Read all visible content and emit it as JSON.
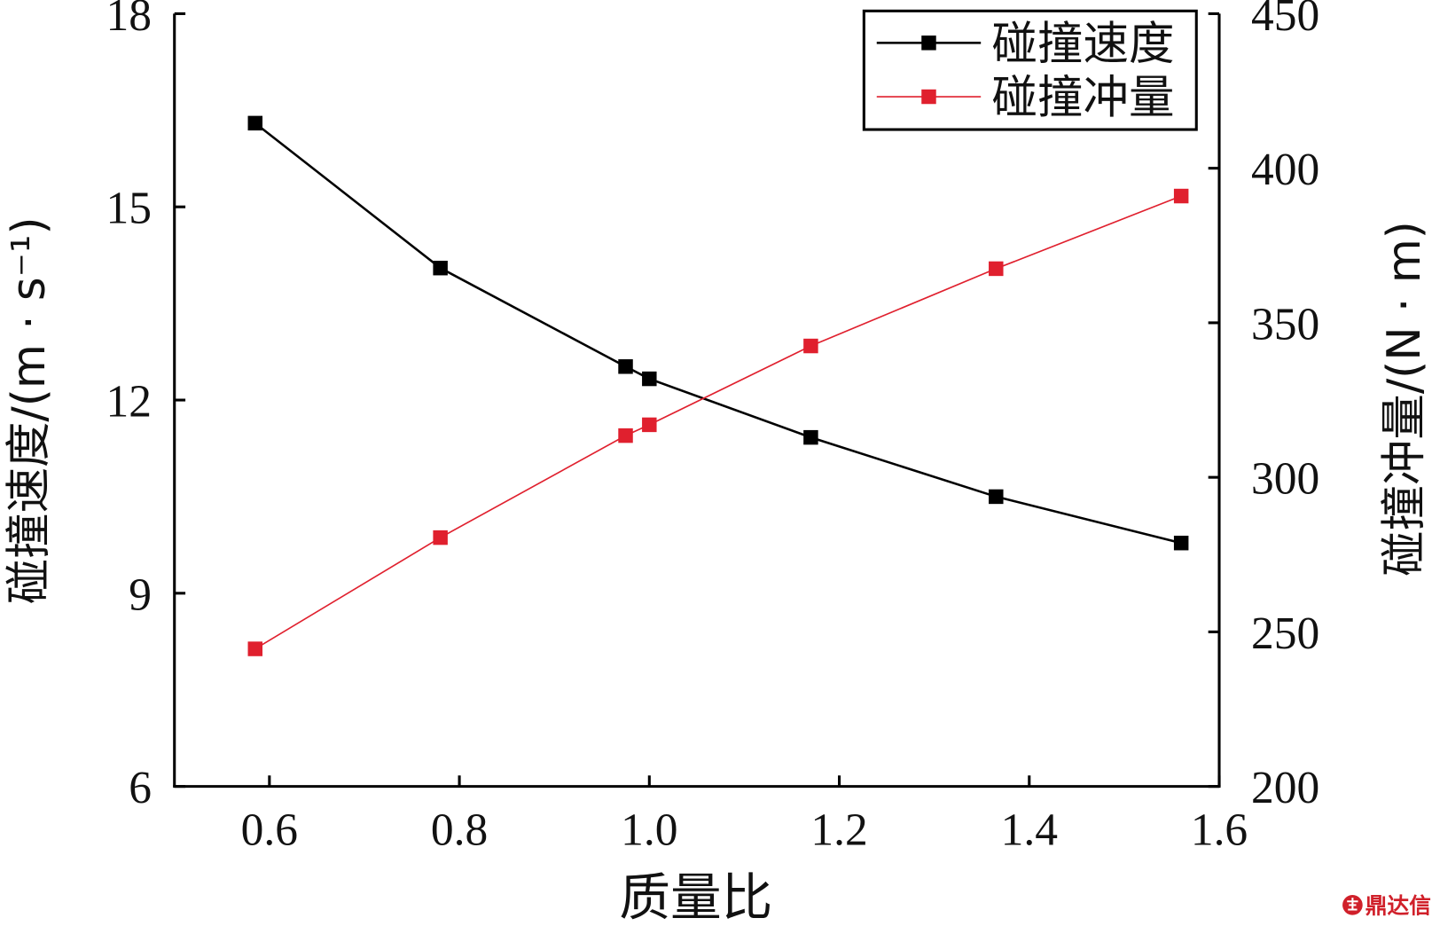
{
  "chart_data": {
    "type": "line",
    "x": [
      0.585,
      0.78,
      0.975,
      1.0,
      1.17,
      1.365,
      1.56
    ],
    "xlabel": "质量比",
    "ylabel": "碰撞速度/(m · s⁻¹)",
    "y2label": "碰撞冲量/(N · m)",
    "xlim": [
      0.5,
      1.6
    ],
    "ylim": [
      6,
      18
    ],
    "y2lim": [
      200,
      450
    ],
    "xticks": [
      "0.6",
      "0.8",
      "1.0",
      "1.2",
      "1.4",
      "1.6"
    ],
    "yticks": [
      "6",
      "9",
      "12",
      "15",
      "18"
    ],
    "y2ticks": [
      "200",
      "250",
      "300",
      "350",
      "400",
      "450"
    ],
    "series": [
      {
        "name": "碰撞速度",
        "axis": "left",
        "color": "#000000",
        "values": [
          16.3,
          14.05,
          12.52,
          12.33,
          11.42,
          10.5,
          9.78
        ]
      },
      {
        "name": "碰撞冲量",
        "axis": "right",
        "color": "#e0202e",
        "values": [
          244.5,
          280.5,
          313.5,
          317.0,
          342.5,
          367.5,
          391.0
        ]
      }
    ],
    "legend": "top-right",
    "grid": false
  },
  "watermark": {
    "text": "鼎达信",
    "color": "#d0202a",
    "icon": "logo-icon"
  }
}
